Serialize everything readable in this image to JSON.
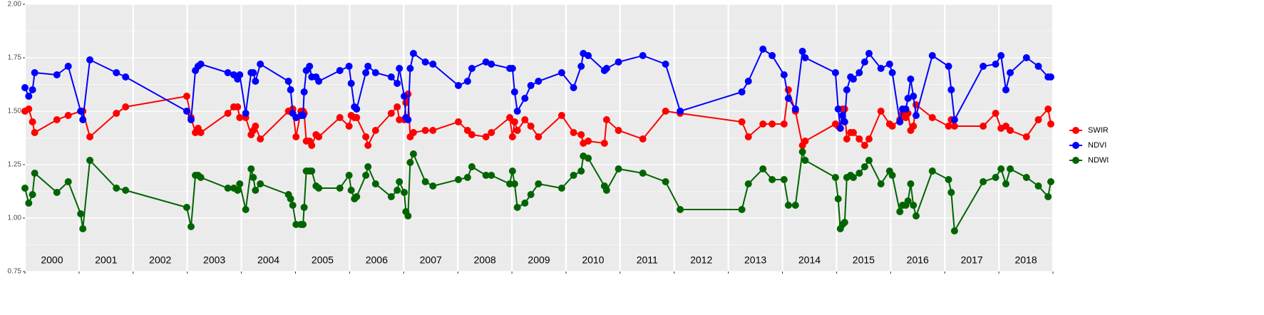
{
  "chart_data": {
    "type": "line",
    "x": [
      2000.0,
      2000.07,
      2000.14,
      2000.18,
      2000.59,
      2000.8,
      2001.03,
      2001.07,
      2001.2,
      2001.69,
      2001.86,
      2002.99,
      2003.07,
      2003.15,
      2003.2,
      2003.25,
      2003.75,
      2003.86,
      2003.93,
      2003.97,
      2004.08,
      2004.18,
      2004.22,
      2004.26,
      2004.35,
      2004.87,
      2004.91,
      2004.95,
      2005.01,
      2005.1,
      2005.14,
      2005.16,
      2005.2,
      2005.26,
      2005.3,
      2005.38,
      2005.43,
      2005.82,
      2005.99,
      2006.03,
      2006.09,
      2006.13,
      2006.3,
      2006.34,
      2006.48,
      2006.77,
      2006.88,
      2006.92,
      2007.01,
      2007.04,
      2007.08,
      2007.12,
      2007.18,
      2007.4,
      2007.54,
      2008.01,
      2008.18,
      2008.26,
      2008.52,
      2008.62,
      2008.96,
      2009.01,
      2009.05,
      2009.1,
      2009.24,
      2009.35,
      2009.49,
      2009.92,
      2010.14,
      2010.28,
      2010.32,
      2010.41,
      2010.71,
      2010.75,
      2010.97,
      2011.42,
      2011.84,
      2012.11,
      2013.25,
      2013.37,
      2013.64,
      2013.81,
      2014.03,
      2014.11,
      2014.24,
      2014.37,
      2014.42,
      2014.98,
      2015.03,
      2015.07,
      2015.11,
      2015.15,
      2015.19,
      2015.26,
      2015.31,
      2015.42,
      2015.52,
      2015.6,
      2015.82,
      2015.98,
      2016.03,
      2016.17,
      2016.22,
      2016.28,
      2016.32,
      2016.37,
      2016.42,
      2016.47,
      2016.77,
      2017.07,
      2017.12,
      2017.18,
      2017.71,
      2017.94,
      2018.04,
      2018.13,
      2018.21,
      2018.51,
      2018.73,
      2018.91,
      2018.96
    ],
    "series": [
      {
        "name": "SWIR",
        "color": "#ff0000",
        "values": [
          1.5,
          1.51,
          1.45,
          1.4,
          1.46,
          1.48,
          1.5,
          1.5,
          1.38,
          1.49,
          1.52,
          1.57,
          1.47,
          1.4,
          1.42,
          1.4,
          1.49,
          1.52,
          1.52,
          1.47,
          1.47,
          1.39,
          1.41,
          1.43,
          1.37,
          1.5,
          1.5,
          1.51,
          1.38,
          1.5,
          1.5,
          1.49,
          1.36,
          1.36,
          1.34,
          1.39,
          1.38,
          1.47,
          1.43,
          1.48,
          1.47,
          1.47,
          1.38,
          1.34,
          1.41,
          1.49,
          1.52,
          1.46,
          1.46,
          1.54,
          1.58,
          1.38,
          1.4,
          1.41,
          1.41,
          1.45,
          1.41,
          1.39,
          1.38,
          1.4,
          1.47,
          1.38,
          1.45,
          1.41,
          1.46,
          1.43,
          1.38,
          1.48,
          1.4,
          1.39,
          1.35,
          1.36,
          1.35,
          1.46,
          1.41,
          1.37,
          1.5,
          1.49,
          1.45,
          1.38,
          1.44,
          1.44,
          1.44,
          1.6,
          1.5,
          1.34,
          1.36,
          1.44,
          1.43,
          1.42,
          1.51,
          1.51,
          1.37,
          1.4,
          1.4,
          1.37,
          1.34,
          1.37,
          1.5,
          1.44,
          1.43,
          1.46,
          1.49,
          1.47,
          1.49,
          1.41,
          1.43,
          1.53,
          1.47,
          1.43,
          1.46,
          1.43,
          1.43,
          1.49,
          1.42,
          1.43,
          1.41,
          1.38,
          1.46,
          1.51,
          1.44
        ]
      },
      {
        "name": "NDVI",
        "color": "#0000ff",
        "values": [
          1.61,
          1.57,
          1.6,
          1.68,
          1.67,
          1.71,
          1.5,
          1.46,
          1.74,
          1.68,
          1.66,
          1.5,
          1.46,
          1.69,
          1.71,
          1.72,
          1.68,
          1.67,
          1.65,
          1.67,
          1.49,
          1.68,
          1.68,
          1.64,
          1.72,
          1.64,
          1.6,
          1.49,
          1.47,
          1.48,
          1.48,
          1.59,
          1.69,
          1.71,
          1.66,
          1.66,
          1.64,
          1.69,
          1.71,
          1.63,
          1.52,
          1.51,
          1.68,
          1.71,
          1.68,
          1.66,
          1.63,
          1.7,
          1.57,
          1.47,
          1.46,
          1.7,
          1.77,
          1.73,
          1.72,
          1.62,
          1.64,
          1.7,
          1.73,
          1.72,
          1.7,
          1.7,
          1.59,
          1.5,
          1.56,
          1.62,
          1.64,
          1.68,
          1.61,
          1.71,
          1.77,
          1.76,
          1.69,
          1.7,
          1.73,
          1.76,
          1.72,
          1.5,
          1.59,
          1.64,
          1.79,
          1.76,
          1.67,
          1.56,
          1.51,
          1.78,
          1.75,
          1.68,
          1.51,
          1.42,
          1.48,
          1.45,
          1.6,
          1.66,
          1.65,
          1.68,
          1.73,
          1.77,
          1.7,
          1.72,
          1.68,
          1.45,
          1.51,
          1.51,
          1.56,
          1.65,
          1.57,
          1.48,
          1.76,
          1.71,
          1.6,
          1.46,
          1.71,
          1.72,
          1.76,
          1.6,
          1.68,
          1.75,
          1.71,
          1.66,
          1.66
        ]
      },
      {
        "name": "NDWI",
        "color": "#006400",
        "values": [
          1.14,
          1.07,
          1.11,
          1.21,
          1.12,
          1.17,
          1.02,
          0.95,
          1.27,
          1.14,
          1.13,
          1.05,
          0.96,
          1.2,
          1.2,
          1.19,
          1.14,
          1.14,
          1.13,
          1.16,
          1.04,
          1.23,
          1.19,
          1.13,
          1.16,
          1.11,
          1.09,
          1.06,
          0.97,
          0.97,
          0.97,
          1.05,
          1.22,
          1.22,
          1.22,
          1.15,
          1.14,
          1.14,
          1.2,
          1.13,
          1.09,
          1.1,
          1.2,
          1.24,
          1.16,
          1.1,
          1.13,
          1.17,
          1.12,
          1.03,
          1.01,
          1.26,
          1.3,
          1.17,
          1.15,
          1.18,
          1.19,
          1.24,
          1.2,
          1.2,
          1.16,
          1.22,
          1.16,
          1.05,
          1.07,
          1.11,
          1.16,
          1.14,
          1.2,
          1.22,
          1.29,
          1.28,
          1.15,
          1.13,
          1.23,
          1.21,
          1.17,
          1.04,
          1.04,
          1.16,
          1.23,
          1.18,
          1.18,
          1.06,
          1.06,
          1.31,
          1.27,
          1.19,
          1.09,
          0.95,
          0.97,
          0.98,
          1.19,
          1.2,
          1.19,
          1.21,
          1.24,
          1.27,
          1.16,
          1.22,
          1.2,
          1.03,
          1.06,
          1.06,
          1.08,
          1.16,
          1.06,
          1.01,
          1.22,
          1.18,
          1.12,
          0.94,
          1.17,
          1.19,
          1.23,
          1.16,
          1.23,
          1.19,
          1.15,
          1.1,
          1.17
        ]
      }
    ],
    "xlim": [
      2000,
      2019
    ],
    "xticks": [
      {
        "value": 2000.5,
        "label": "2000"
      },
      {
        "value": 2001.5,
        "label": "2001"
      },
      {
        "value": 2002.5,
        "label": "2002"
      },
      {
        "value": 2003.5,
        "label": "2003"
      },
      {
        "value": 2004.5,
        "label": "2004"
      },
      {
        "value": 2005.5,
        "label": "2005"
      },
      {
        "value": 2006.5,
        "label": "2006"
      },
      {
        "value": 2007.5,
        "label": "2007"
      },
      {
        "value": 2008.5,
        "label": "2008"
      },
      {
        "value": 2009.5,
        "label": "2009"
      },
      {
        "value": 2010.5,
        "label": "2010"
      },
      {
        "value": 2011.5,
        "label": "2011"
      },
      {
        "value": 2012.5,
        "label": "2012"
      },
      {
        "value": 2013.5,
        "label": "2013"
      },
      {
        "value": 2014.5,
        "label": "2014"
      },
      {
        "value": 2015.5,
        "label": "2015"
      },
      {
        "value": 2016.5,
        "label": "2016"
      },
      {
        "value": 2017.5,
        "label": "2017"
      },
      {
        "value": 2018.5,
        "label": "2018"
      }
    ],
    "ylim": [
      0.75,
      2.0
    ],
    "yticks": [
      {
        "value": 0.75,
        "label": "0.75"
      },
      {
        "value": 1,
        "label": "1.00"
      },
      {
        "value": 1.25,
        "label": "1.25"
      },
      {
        "value": 1.5,
        "label": "1.50"
      },
      {
        "value": 1.75,
        "label": "1.75"
      },
      {
        "value": 2,
        "label": "2.00"
      }
    ],
    "grid": true,
    "legend": "right"
  }
}
